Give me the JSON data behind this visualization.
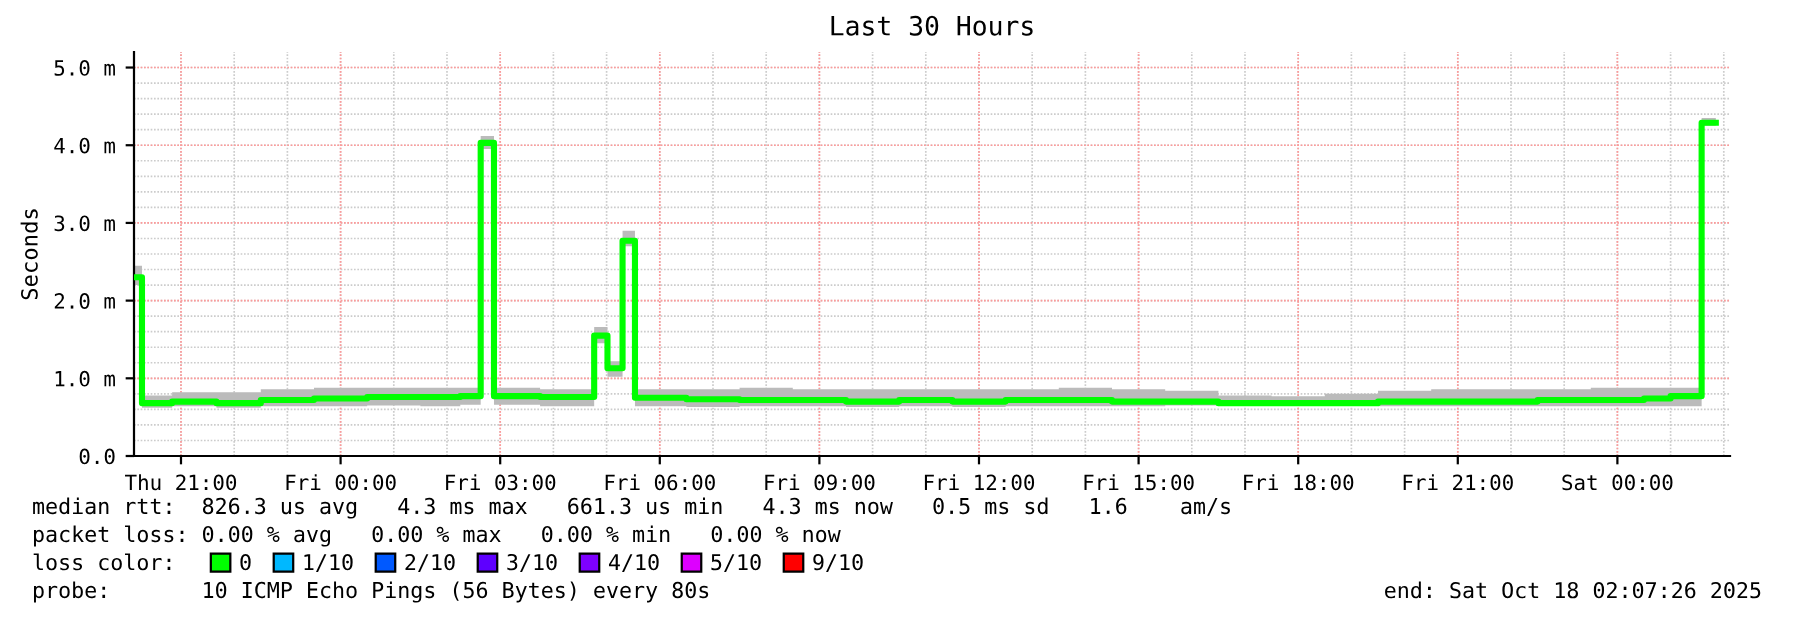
{
  "chart_data": {
    "type": "step",
    "title": "Last 30 Hours",
    "ylabel": "Seconds",
    "legend_title": "loss color:",
    "x": [
      "2025-10-16T20:07",
      "2025-10-16T20:16",
      "2025-10-16T20:50",
      "2025-10-16T21:40",
      "2025-10-16T22:30",
      "2025-10-16T23:30",
      "2025-10-17T00:30",
      "2025-10-17T01:30",
      "2025-10-17T02:15",
      "2025-10-17T02:38",
      "2025-10-17T02:53",
      "2025-10-17T03:45",
      "2025-10-17T04:46",
      "2025-10-17T05:01",
      "2025-10-17T05:18",
      "2025-10-17T05:32",
      "2025-10-17T06:30",
      "2025-10-17T07:30",
      "2025-10-17T08:30",
      "2025-10-17T09:30",
      "2025-10-17T10:30",
      "2025-10-17T11:30",
      "2025-10-17T12:30",
      "2025-10-17T13:30",
      "2025-10-17T14:30",
      "2025-10-17T15:30",
      "2025-10-17T16:30",
      "2025-10-17T17:30",
      "2025-10-17T18:30",
      "2025-10-17T19:30",
      "2025-10-17T20:30",
      "2025-10-17T21:30",
      "2025-10-17T22:30",
      "2025-10-17T23:30",
      "2025-10-18T00:30",
      "2025-10-18T01:00",
      "2025-10-18T01:35",
      "2025-10-18T01:51"
    ],
    "series": [
      {
        "name": "0",
        "color": "#00ff00",
        "values": [
          2.3,
          0.68,
          0.7,
          0.68,
          0.72,
          0.74,
          0.76,
          0.76,
          0.77,
          4.03,
          0.77,
          0.76,
          1.55,
          1.13,
          2.77,
          0.75,
          0.73,
          0.72,
          0.72,
          0.7,
          0.72,
          0.7,
          0.72,
          0.72,
          0.7,
          0.7,
          0.68,
          0.68,
          0.68,
          0.7,
          0.7,
          0.7,
          0.72,
          0.72,
          0.74,
          0.77,
          4.29,
          4.29
        ],
        "lower": [
          2.2,
          0.62,
          0.64,
          0.62,
          0.64,
          0.64,
          0.65,
          0.64,
          0.66,
          3.95,
          0.66,
          0.64,
          1.45,
          1.02,
          2.7,
          0.64,
          0.63,
          0.64,
          0.64,
          0.63,
          0.64,
          0.63,
          0.64,
          0.64,
          0.64,
          0.65,
          0.66,
          0.66,
          0.66,
          0.64,
          0.64,
          0.64,
          0.64,
          0.64,
          0.64,
          0.64,
          4.25,
          4.25
        ],
        "upper": [
          2.45,
          0.78,
          0.82,
          0.82,
          0.86,
          0.88,
          0.88,
          0.88,
          0.88,
          4.12,
          0.88,
          0.86,
          1.66,
          1.22,
          2.9,
          0.86,
          0.86,
          0.88,
          0.86,
          0.86,
          0.86,
          0.86,
          0.86,
          0.88,
          0.86,
          0.84,
          0.78,
          0.77,
          0.8,
          0.84,
          0.86,
          0.86,
          0.86,
          0.88,
          0.88,
          0.88,
          4.35,
          4.35
        ]
      },
      {
        "name": "1/10",
        "color": "#00b8ff",
        "values": [
          null,
          null,
          null,
          null,
          null,
          null,
          null,
          null,
          null,
          null,
          null,
          null,
          null,
          null,
          null,
          null,
          null,
          null,
          null,
          null,
          null,
          null,
          null,
          null,
          null,
          null,
          null,
          null,
          null,
          null,
          null,
          null,
          null,
          null,
          null,
          null,
          null,
          null
        ]
      },
      {
        "name": "2/10",
        "color": "#0059ff",
        "values": [
          null,
          null,
          null,
          null,
          null,
          null,
          null,
          null,
          null,
          null,
          null,
          null,
          null,
          null,
          null,
          null,
          null,
          null,
          null,
          null,
          null,
          null,
          null,
          null,
          null,
          null,
          null,
          null,
          null,
          null,
          null,
          null,
          null,
          null,
          null,
          null,
          null,
          null
        ]
      },
      {
        "name": "3/10",
        "color": "#5e00ff",
        "values": [
          null,
          null,
          null,
          null,
          null,
          null,
          null,
          null,
          null,
          null,
          null,
          null,
          null,
          null,
          null,
          null,
          null,
          null,
          null,
          null,
          null,
          null,
          null,
          null,
          null,
          null,
          null,
          null,
          null,
          null,
          null,
          null,
          null,
          null,
          null,
          null,
          null,
          null
        ]
      },
      {
        "name": "4/10",
        "color": "#7e00ff",
        "values": [
          null,
          null,
          null,
          null,
          null,
          null,
          null,
          null,
          null,
          null,
          null,
          null,
          null,
          null,
          null,
          null,
          null,
          null,
          null,
          null,
          null,
          null,
          null,
          null,
          null,
          null,
          null,
          null,
          null,
          null,
          null,
          null,
          null,
          null,
          null,
          null,
          null,
          null
        ]
      },
      {
        "name": "5/10",
        "color": "#dd00ff",
        "values": [
          null,
          null,
          null,
          null,
          null,
          null,
          null,
          null,
          null,
          null,
          null,
          null,
          null,
          null,
          null,
          null,
          null,
          null,
          null,
          null,
          null,
          null,
          null,
          null,
          null,
          null,
          null,
          null,
          null,
          null,
          null,
          null,
          null,
          null,
          null,
          null,
          null,
          null
        ]
      },
      {
        "name": "9/10",
        "color": "#ff0000",
        "values": [
          null,
          null,
          null,
          null,
          null,
          null,
          null,
          null,
          null,
          null,
          null,
          null,
          null,
          null,
          null,
          null,
          null,
          null,
          null,
          null,
          null,
          null,
          null,
          null,
          null,
          null,
          null,
          null,
          null,
          null,
          null,
          null,
          null,
          null,
          null,
          null,
          null,
          null
        ]
      }
    ],
    "xlim": [
      "2025-10-16T20:07",
      "2025-10-18T02:07"
    ],
    "xticks": [
      {
        "value": "2025-10-16T21:00",
        "label": "Thu 21:00"
      },
      {
        "value": "2025-10-17T00:00",
        "label": "Fri 00:00"
      },
      {
        "value": "2025-10-17T03:00",
        "label": "Fri 03:00"
      },
      {
        "value": "2025-10-17T06:00",
        "label": "Fri 06:00"
      },
      {
        "value": "2025-10-17T09:00",
        "label": "Fri 09:00"
      },
      {
        "value": "2025-10-17T12:00",
        "label": "Fri 12:00"
      },
      {
        "value": "2025-10-17T15:00",
        "label": "Fri 15:00"
      },
      {
        "value": "2025-10-17T18:00",
        "label": "Fri 18:00"
      },
      {
        "value": "2025-10-17T21:00",
        "label": "Fri 21:00"
      },
      {
        "value": "2025-10-18T00:00",
        "label": "Sat 00:00"
      }
    ],
    "ylim": [
      0,
      5.2
    ],
    "yticks": [
      {
        "value": 0,
        "label": "0.0"
      },
      {
        "value": 1,
        "label": "1.0 m"
      },
      {
        "value": 2,
        "label": "2.0 m"
      },
      {
        "value": 3,
        "label": "3.0 m"
      },
      {
        "value": 4,
        "label": "4.0 m"
      },
      {
        "value": 5,
        "label": "5.0 m"
      }
    ],
    "grid": true,
    "legend": "bottom",
    "annotations": [
      "median rtt:  826.3 us avg   4.3 ms max   661.3 us min   4.3 ms now   0.5 ms sd   1.6    am/s",
      "packet loss: 0.00 % avg   0.00 % max   0.00 % min   0.00 % now",
      "probe:       10 ICMP Echo Pings (56 Bytes) every 80s",
      "end: Sat Oct 18 02:07:26 2025"
    ]
  }
}
